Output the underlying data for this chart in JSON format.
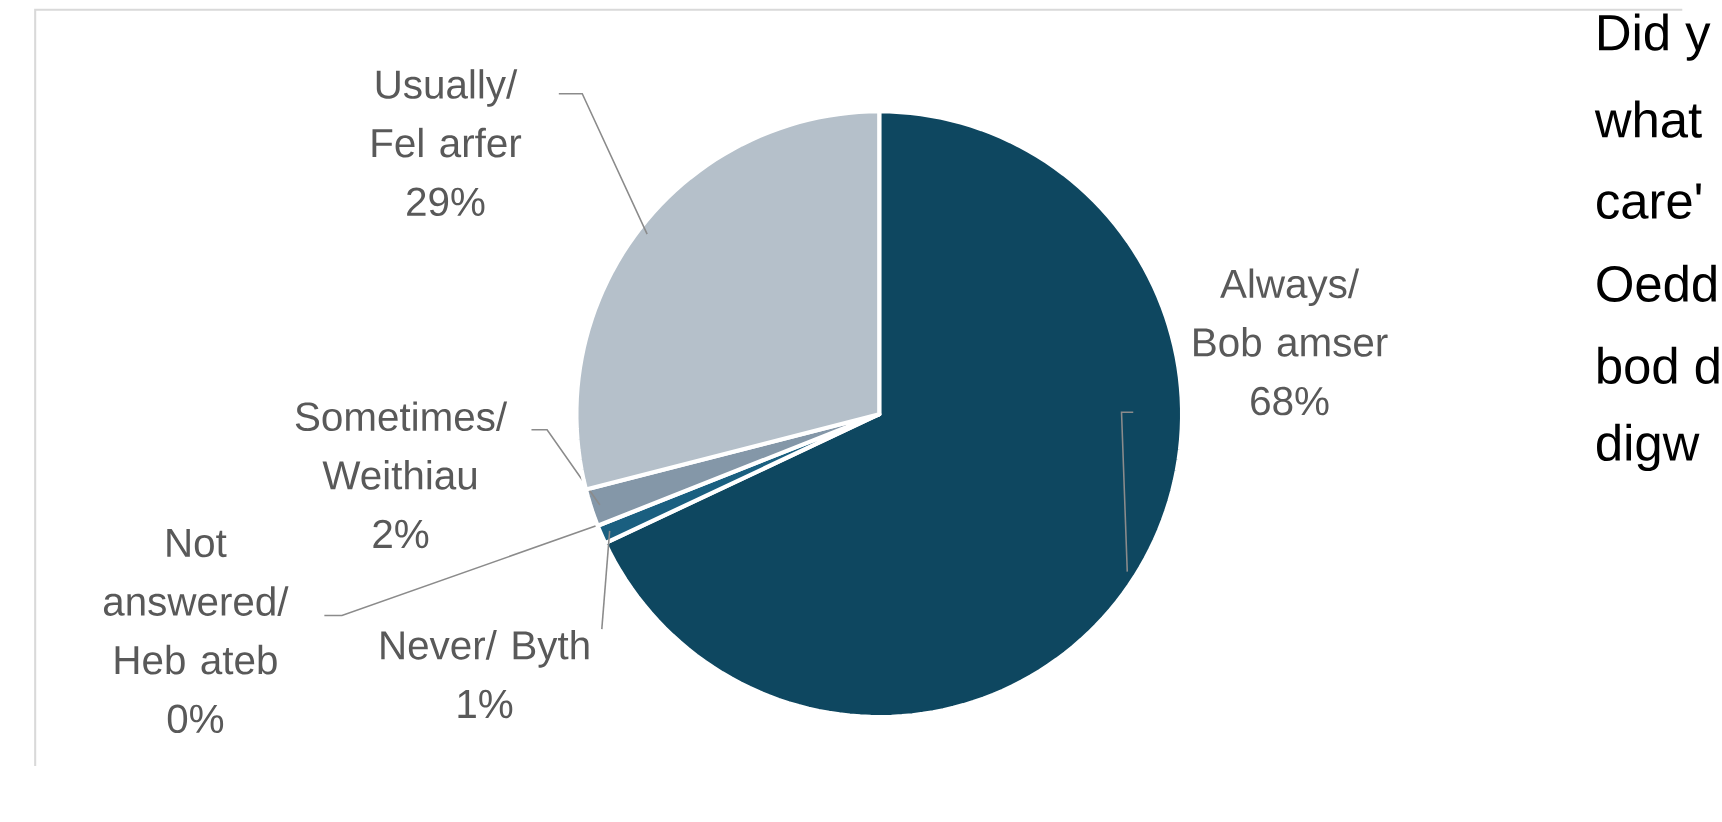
{
  "chart_data": {
    "type": "pie",
    "categories": [
      "Always/ Bob amser",
      "Never/ Byth",
      "Not answered/ Heb ateb",
      "Sometimes/ Weithiau",
      "Usually/ Fel arfer"
    ],
    "values": [
      68,
      1,
      0,
      2,
      29
    ],
    "value_labels": [
      "68%",
      "1%",
      "0%",
      "2%",
      "29%"
    ],
    "colors": [
      "#0e4760",
      "#1a5f80",
      "#5f7f96",
      "#8497a8",
      "#b5c0ca"
    ],
    "annotations": [
      "Did y",
      "what",
      "care'",
      "Oedd",
      "bod d",
      "digw"
    ]
  }
}
